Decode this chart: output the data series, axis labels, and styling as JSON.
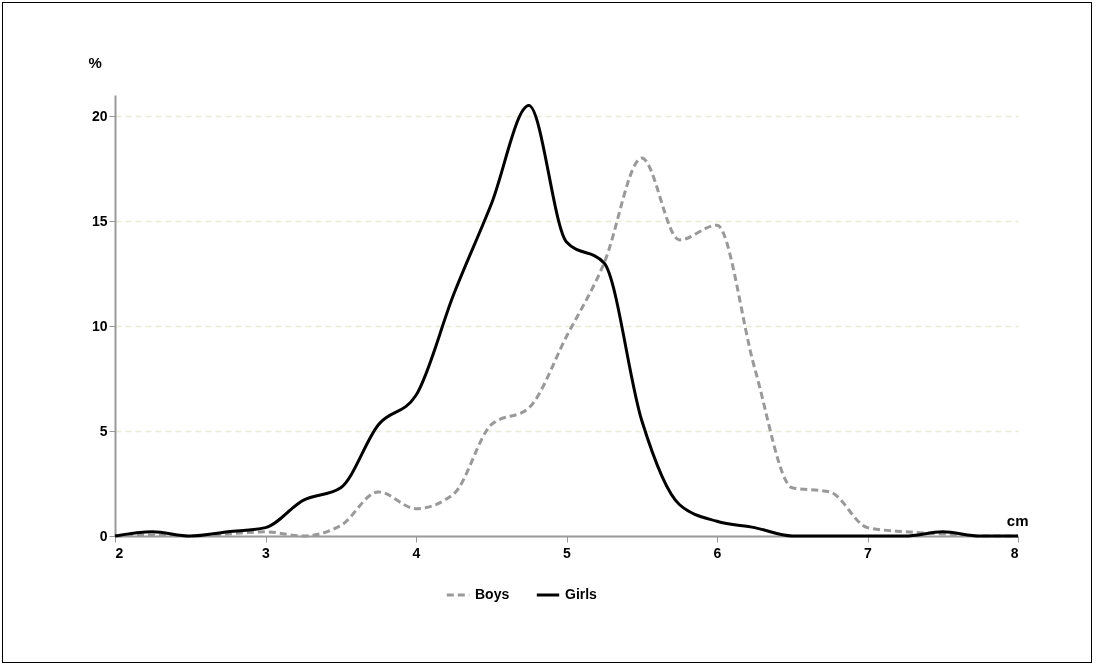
{
  "chart_data": {
    "type": "line",
    "xlabel": "cm",
    "ylabel": "%",
    "x": [
      2,
      2.25,
      2.5,
      2.75,
      3,
      3.25,
      3.5,
      3.75,
      4,
      4.25,
      4.5,
      4.75,
      5,
      5.25,
      5.5,
      5.75,
      6,
      6.25,
      6.5,
      6.75,
      7,
      7.25,
      7.5,
      7.75,
      8
    ],
    "series": [
      {
        "name": "Boys",
        "color": "#999999",
        "line_style": "dashed",
        "values": [
          0,
          0.05,
          0,
          0.1,
          0.2,
          0,
          0.5,
          2.1,
          1.3,
          2,
          5.3,
          6.1,
          9.5,
          13,
          18,
          14.1,
          14.8,
          8,
          2.3,
          2.1,
          0.4,
          0.2,
          0.1,
          0,
          0
        ]
      },
      {
        "name": "Girls",
        "color": "#000000",
        "line_style": "solid",
        "values": [
          0,
          0.2,
          0,
          0.2,
          0.4,
          1.7,
          2.3,
          5.3,
          6.7,
          11.5,
          15.8,
          20.5,
          14,
          13,
          5.5,
          1.5,
          0.7,
          0.4,
          0,
          0,
          0,
          0,
          0.2,
          0,
          0
        ]
      }
    ],
    "xlim": [
      2,
      8
    ],
    "xticks": [
      2,
      3,
      4,
      5,
      6,
      7,
      8
    ],
    "ylim": [
      0,
      21
    ],
    "yticks": [
      0,
      5,
      10,
      15,
      20
    ],
    "grid": "y",
    "legend": "bottom"
  }
}
